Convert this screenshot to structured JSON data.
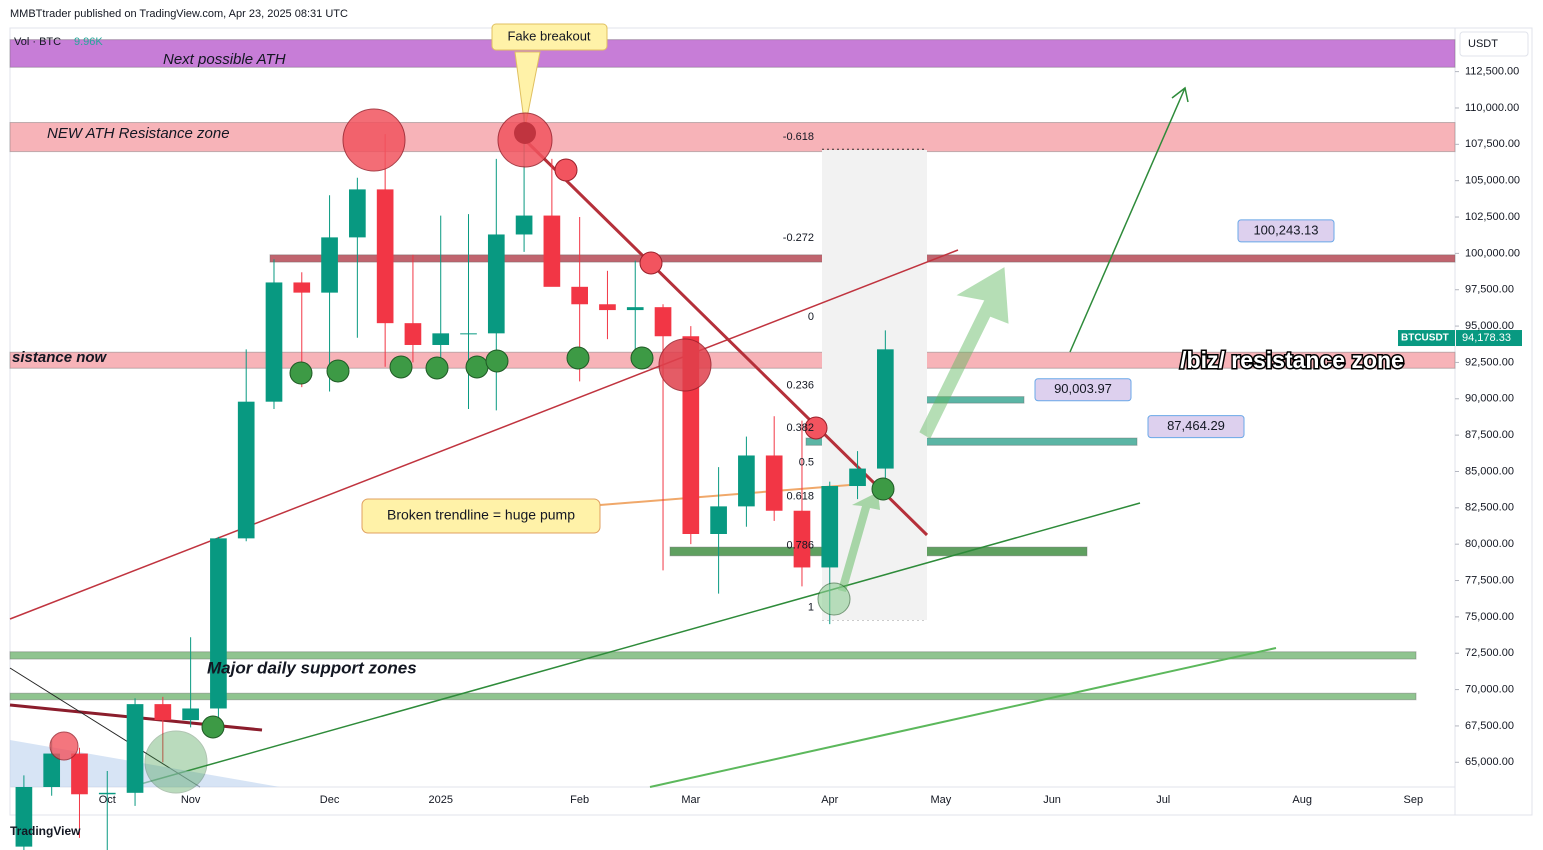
{
  "header": {
    "text": "MMBTtrader published on TradingView.com, Apr 23, 2025 08:31 UTC"
  },
  "footer": {
    "logo": "TradingView"
  },
  "chart_data": {
    "type": "candlestick",
    "volume_label": "Vol · BTC",
    "volume_value": "9.96K",
    "currency": "USDT",
    "symbol": "BTCUSDT",
    "last_price": {
      "value": 94178.33,
      "label": "94,178.33"
    },
    "up_color": "#089981",
    "down_color": "#f23645",
    "ylim": [
      63300,
      115500
    ],
    "yticks": [
      {
        "value": 65000,
        "label": "65,000.00"
      },
      {
        "value": 67500,
        "label": "67,500.00"
      },
      {
        "value": 70000,
        "label": "70,000.00"
      },
      {
        "value": 72500,
        "label": "72,500.00"
      },
      {
        "value": 75000,
        "label": "75,000.00"
      },
      {
        "value": 77500,
        "label": "77,500.00"
      },
      {
        "value": 80000,
        "label": "80,000.00"
      },
      {
        "value": 82500,
        "label": "82,500.00"
      },
      {
        "value": 85000,
        "label": "85,000.00"
      },
      {
        "value": 87500,
        "label": "87,500.00"
      },
      {
        "value": 90000,
        "label": "90,000.00"
      },
      {
        "value": 92500,
        "label": "92,500.00"
      },
      {
        "value": 95000,
        "label": "95,000.00"
      },
      {
        "value": 97500,
        "label": "97,500.00"
      },
      {
        "value": 100000,
        "label": "100,000.00"
      },
      {
        "value": 102500,
        "label": "102,500.00"
      },
      {
        "value": 105000,
        "label": "105,000.00"
      },
      {
        "value": 107500,
        "label": "107,500.00"
      },
      {
        "value": 110000,
        "label": "110,000.00"
      },
      {
        "value": 112500,
        "label": "112,500.00"
      }
    ],
    "categories": [
      null,
      null,
      null,
      "Oct",
      null,
      null,
      "Nov",
      null,
      null,
      null,
      null,
      "Dec",
      null,
      null,
      null,
      "2025",
      null,
      null,
      null,
      null,
      "Feb",
      null,
      null,
      null,
      "Mar",
      null,
      null,
      null,
      null,
      "Apr",
      null,
      null,
      null,
      "May",
      null,
      null,
      null,
      "Jun",
      null,
      null,
      null,
      "Jul",
      null,
      null,
      null,
      null,
      "Aug",
      null,
      null,
      null,
      "Sep",
      null
    ],
    "open": [
      59200,
      63300,
      65600,
      62800,
      62900,
      69000,
      67900,
      68700,
      80400,
      89800,
      98000,
      97300,
      101100,
      104400,
      95200,
      93700,
      94500,
      94500,
      101300,
      102600,
      97700,
      96500,
      96100,
      96300,
      94300,
      80700,
      82600,
      86100,
      82300,
      78400,
      84000,
      85200,
      null,
      null,
      null,
      null,
      null,
      null,
      null,
      null,
      null,
      null,
      null,
      null,
      null,
      null,
      null,
      null,
      null,
      null,
      null,
      null
    ],
    "high": [
      64100,
      66500,
      66000,
      64400,
      69400,
      69500,
      73600,
      80500,
      93400,
      99600,
      98700,
      104000,
      105200,
      108200,
      99900,
      102600,
      102700,
      106500,
      109600,
      106500,
      102500,
      98800,
      99500,
      96500,
      95000,
      85300,
      87400,
      88800,
      88500,
      84300,
      86400,
      94700,
      null,
      null,
      null,
      null,
      null,
      null,
      null,
      null,
      null,
      null,
      null,
      null,
      null,
      null,
      null,
      null,
      null,
      null,
      null,
      null
    ],
    "low": [
      58700,
      62700,
      59800,
      58900,
      62000,
      65000,
      67400,
      66800,
      80200,
      89300,
      90800,
      90500,
      94200,
      92200,
      92500,
      91500,
      89300,
      89200,
      100100,
      97800,
      91200,
      94100,
      93300,
      78200,
      80000,
      76600,
      81200,
      81600,
      77100,
      74500,
      83100,
      84400,
      null,
      null,
      null,
      null,
      null,
      null,
      null,
      null,
      null,
      null,
      null,
      null,
      null,
      null,
      null,
      null,
      null,
      null,
      null,
      null
    ],
    "close": [
      63300,
      65600,
      62800,
      62900,
      69000,
      67900,
      68700,
      80400,
      89800,
      98000,
      97300,
      101100,
      104400,
      95200,
      93700,
      94500,
      94500,
      101300,
      102600,
      97700,
      96500,
      96100,
      96300,
      94300,
      80700,
      82600,
      86100,
      82300,
      78400,
      84000,
      85200,
      93400,
      null,
      null,
      null,
      null,
      null,
      null,
      null,
      null,
      null,
      null,
      null,
      null,
      null,
      null,
      null,
      null,
      null,
      null,
      null,
      null
    ],
    "zones": [
      {
        "from": 112800,
        "to": 114700,
        "color": "#c77dd7",
        "label": "Next possible ATH"
      },
      {
        "from": 107000,
        "to": 109000,
        "color": "#f7b3b8",
        "label": "NEW ATH Resistance zone"
      },
      {
        "from": 99400,
        "to": 99900,
        "color": "#c0646e"
      },
      {
        "from": 92100,
        "to": 93200,
        "color": "#f7b3b8",
        "label": "sistance now"
      },
      {
        "from": 89700,
        "to": 90150,
        "color": "#5bb5a5"
      },
      {
        "from": 86800,
        "to": 87300,
        "color": "#5bb5a5"
      },
      {
        "from": 79200,
        "to": 79800,
        "color": "#5fa060"
      },
      {
        "from": 72100,
        "to": 72600,
        "color": "#8fc48f",
        "label": "Major daily support zones"
      },
      {
        "from": 69300,
        "to": 69750,
        "color": "#8fc48f"
      }
    ],
    "fib": {
      "top": 94800,
      "bottom": 74800,
      "levels": [
        -0.618,
        -0.272,
        0,
        0.236,
        0.382,
        0.5,
        0.618,
        0.786,
        1
      ]
    },
    "price_notes": [
      {
        "value": 100243.13,
        "label": "100,243.13"
      },
      {
        "value": 90003.97,
        "label": "90,003.97"
      },
      {
        "value": 87464.29,
        "label": "87,464.29"
      }
    ],
    "annotations": [
      "Fake breakout",
      "Broken trendline = huge pump",
      "/biz/ resistance zone"
    ]
  }
}
